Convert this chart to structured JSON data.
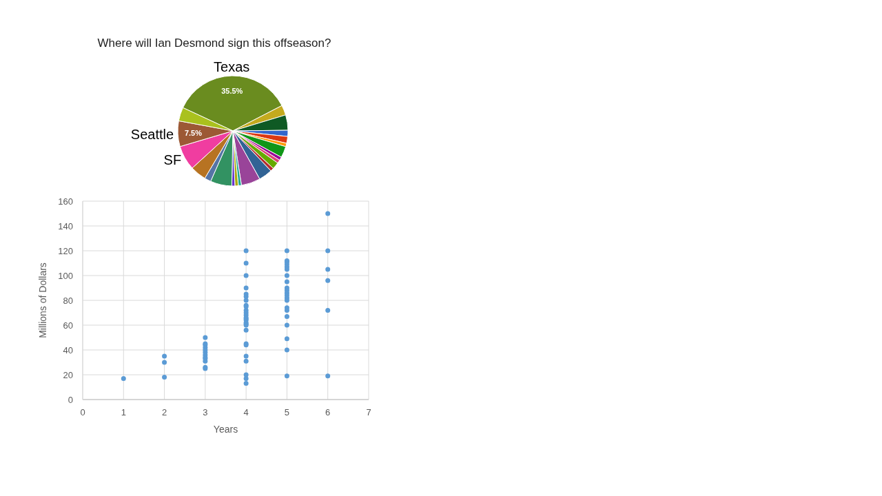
{
  "chart_data": [
    {
      "type": "pie",
      "title": "Where will Ian Desmond sign this offseason?",
      "categories": [
        "Texas",
        null,
        null,
        null,
        null,
        null,
        null,
        null,
        null,
        null,
        null,
        null,
        null,
        null,
        null,
        null,
        null,
        null,
        null,
        "SF",
        "Seattle",
        null
      ],
      "values": [
        35.5,
        2.9,
        4.5,
        1.8,
        2.0,
        1.0,
        3.3,
        1.0,
        1.0,
        2.0,
        1.0,
        4.0,
        5.6,
        0.9,
        1.0,
        0.9,
        6.3,
        1.9,
        4.7,
        7.2,
        7.5,
        4.0
      ],
      "colors": [
        "#6a8c1f",
        "#c4aa1e",
        "#0f5a24",
        "#3366cc",
        "#dc3912",
        "#ff9900",
        "#109618",
        "#990099",
        "#dd4477",
        "#66aa00",
        "#b82e2e",
        "#316395",
        "#994499",
        "#22aa99",
        "#aaaa11",
        "#6633cc",
        "#329262",
        "#5574a6",
        "#b77322",
        "#f03da0",
        "#9c5935",
        "#aac11e"
      ],
      "value_labels": [
        "35.5%",
        null,
        null,
        null,
        null,
        null,
        null,
        null,
        null,
        null,
        null,
        null,
        null,
        null,
        null,
        null,
        null,
        null,
        null,
        null,
        "7.5%",
        null
      ]
    },
    {
      "type": "scatter",
      "xlabel": "Years",
      "ylabel": "Millions of Dollars",
      "x": [
        1,
        2,
        2,
        2,
        3,
        3,
        3,
        3,
        3,
        3,
        3,
        3,
        3,
        3,
        3,
        3,
        4,
        4,
        4,
        4,
        4,
        4,
        4,
        4,
        4,
        4,
        4,
        4,
        4,
        4,
        4,
        4,
        4,
        4,
        4,
        4,
        4,
        4,
        4,
        4,
        4,
        4,
        5,
        5,
        5,
        5,
        5,
        5,
        5,
        5,
        5,
        5,
        5,
        5,
        5,
        5,
        5,
        5,
        5,
        5,
        5,
        5,
        5,
        6,
        6,
        6,
        6,
        6,
        6
      ],
      "values": [
        17,
        35,
        30,
        18,
        50,
        45,
        44,
        42,
        40,
        38,
        36,
        34,
        33,
        31,
        26,
        25,
        120,
        110,
        100,
        90,
        85,
        83,
        80,
        76,
        75,
        72,
        70,
        68,
        66,
        65,
        64,
        62,
        61,
        60,
        56,
        45,
        44,
        35,
        31,
        20,
        17,
        13,
        120,
        112,
        111,
        109,
        107,
        105,
        100,
        95,
        90,
        88,
        86,
        84,
        82,
        80,
        74,
        72,
        67,
        60,
        49,
        40,
        19,
        150,
        120,
        105,
        96,
        72,
        19
      ],
      "color": "#5b9bd5",
      "marker": "circle",
      "xlim": [
        0,
        7
      ],
      "xticks": [
        0,
        1,
        2,
        3,
        4,
        5,
        6,
        7
      ],
      "ylim": [
        0,
        160
      ],
      "yticks": [
        0,
        20,
        40,
        60,
        80,
        100,
        120,
        140,
        160
      ],
      "grid": true
    }
  ]
}
